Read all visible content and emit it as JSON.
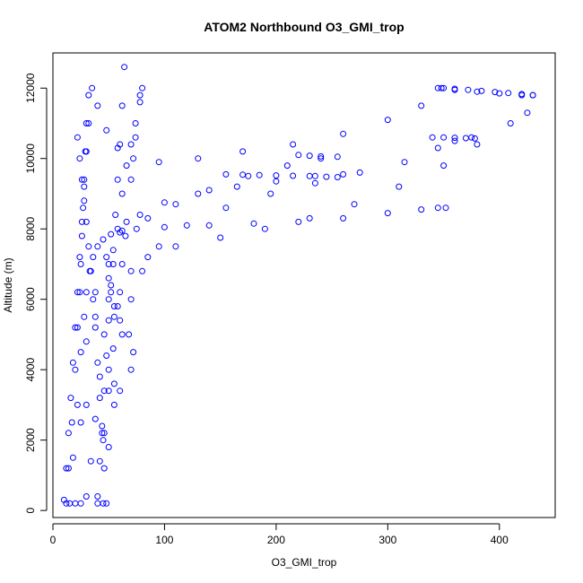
{
  "chart_data": {
    "type": "scatter",
    "title": "ATOM2 Northbound O3_GMI_trop",
    "xlabel": "O3_GMI_trop",
    "ylabel": "Altitude (m)",
    "xlim": [
      0,
      450
    ],
    "ylim": [
      -200,
      13000
    ],
    "x_ticks": [
      0,
      100,
      200,
      300,
      400
    ],
    "y_ticks": [
      0,
      2000,
      4000,
      6000,
      8000,
      10000,
      12000
    ],
    "grid": false,
    "legend": "none",
    "marker": "open-circle",
    "color": "#0000ff",
    "series": [
      {
        "x": [
          12,
          14,
          17,
          20,
          22,
          24,
          25,
          26,
          27,
          28,
          29,
          30,
          32,
          35,
          40,
          48,
          58,
          72,
          95,
          130,
          170,
          215,
          260,
          300,
          330,
          345,
          350,
          360,
          380,
          400,
          420,
          430
        ],
        "y": [
          200,
          1200,
          2500,
          4000,
          5200,
          6200,
          7000,
          7800,
          8600,
          9400,
          10200,
          11000,
          11800,
          12000,
          11500,
          10800,
          10300,
          10000,
          9900,
          10000,
          10200,
          10400,
          10700,
          11100,
          11500,
          12000,
          12000,
          11950,
          11900,
          11850,
          11800,
          11800
        ]
      },
      {
        "x": [
          15,
          18,
          22,
          25,
          28,
          30,
          33,
          36,
          40,
          45,
          52,
          62,
          75,
          100,
          140,
          180,
          220,
          260,
          300,
          330,
          345,
          352
        ],
        "y": [
          200,
          1500,
          3000,
          4500,
          5500,
          6200,
          6800,
          7200,
          7500,
          7700,
          7850,
          7950,
          8000,
          8050,
          8100,
          8150,
          8200,
          8300,
          8450,
          8550,
          8600,
          8600
        ]
      },
      {
        "x": [
          40,
          45,
          50,
          55,
          60,
          70,
          85,
          110,
          150,
          190,
          230,
          270,
          310,
          350,
          380,
          410,
          425
        ],
        "y": [
          200,
          2000,
          4000,
          5500,
          6200,
          6800,
          7200,
          7500,
          7750,
          8000,
          8300,
          8700,
          9200,
          9800,
          10400,
          11000,
          11300
        ]
      },
      {
        "x": [
          45,
          50,
          55,
          62,
          70,
          80,
          95,
          120,
          155,
          195,
          235,
          275,
          315,
          345,
          360,
          375
        ],
        "y": [
          200,
          1800,
          3600,
          5000,
          6000,
          6800,
          7500,
          8100,
          8600,
          9000,
          9300,
          9600,
          9900,
          10300,
          10500,
          10600
        ]
      },
      {
        "x": [
          20,
          25,
          30,
          38,
          48,
          60,
          78,
          100,
          130,
          165,
          200,
          235,
          260
        ],
        "y": [
          200,
          2500,
          4800,
          6200,
          7200,
          7900,
          8400,
          8750,
          9000,
          9200,
          9350,
          9500,
          9550
        ]
      },
      {
        "x": [
          25,
          30,
          38,
          50,
          65,
          85,
          110,
          140,
          175,
          210,
          240
        ],
        "y": [
          200,
          3000,
          5500,
          7000,
          7800,
          8300,
          8700,
          9100,
          9500,
          9800,
          10000
        ]
      },
      {
        "x": [
          30,
          34,
          38,
          42,
          46,
          50,
          54,
          58,
          62,
          66,
          70,
          74,
          78,
          80
        ],
        "y": [
          400,
          1400,
          2600,
          3800,
          5000,
          6000,
          7000,
          8000,
          9000,
          9800,
          10400,
          11000,
          11600,
          12000
        ]
      },
      {
        "x": [
          10,
          12,
          14,
          16,
          18,
          20,
          22,
          24,
          26,
          28,
          30,
          32
        ],
        "y": [
          300,
          1200,
          2200,
          3200,
          4200,
          5200,
          6200,
          7200,
          8200,
          9200,
          10200,
          11000
        ]
      },
      {
        "x": [
          48,
          46,
          44,
          42,
          40,
          38,
          36,
          34,
          32,
          30,
          28,
          26,
          24,
          22
        ],
        "y": [
          200,
          1200,
          2200,
          3200,
          4200,
          5200,
          6000,
          6800,
          7500,
          8200,
          8800,
          9400,
          10000,
          10600
        ]
      },
      {
        "x": [
          64,
          62,
          60,
          58,
          56,
          54,
          52,
          50,
          48,
          46,
          44,
          42,
          40
        ],
        "y": [
          12600,
          11500,
          10400,
          9400,
          8400,
          7400,
          6400,
          5400,
          4400,
          3400,
          2400,
          1400,
          400
        ]
      },
      {
        "x": [
          78,
          74,
          70,
          66,
          62,
          58,
          54,
          50,
          46
        ],
        "y": [
          11800,
          10600,
          9400,
          8200,
          7000,
          5800,
          4600,
          3400,
          2200
        ]
      },
      {
        "x": [
          55,
          60,
          70,
          72,
          68,
          60,
          55,
          52,
          50
        ],
        "y": [
          3000,
          3400,
          4000,
          4500,
          5000,
          5400,
          5800,
          6200,
          6600
        ]
      },
      {
        "x": [
          220,
          230,
          240,
          255
        ],
        "y": [
          10100,
          10080,
          10060,
          10050
        ]
      },
      {
        "x": [
          155,
          170,
          185,
          200,
          215,
          230,
          245,
          255
        ],
        "y": [
          9550,
          9540,
          9530,
          9520,
          9510,
          9500,
          9480,
          9470
        ]
      },
      {
        "x": [
          340,
          350,
          360,
          370,
          378
        ],
        "y": [
          10600,
          10600,
          10590,
          10580,
          10570
        ]
      },
      {
        "x": [
          348,
          360,
          372,
          384,
          396,
          408,
          420,
          430
        ],
        "y": [
          12000,
          11980,
          11950,
          11920,
          11890,
          11860,
          11830,
          11800
        ]
      }
    ]
  }
}
